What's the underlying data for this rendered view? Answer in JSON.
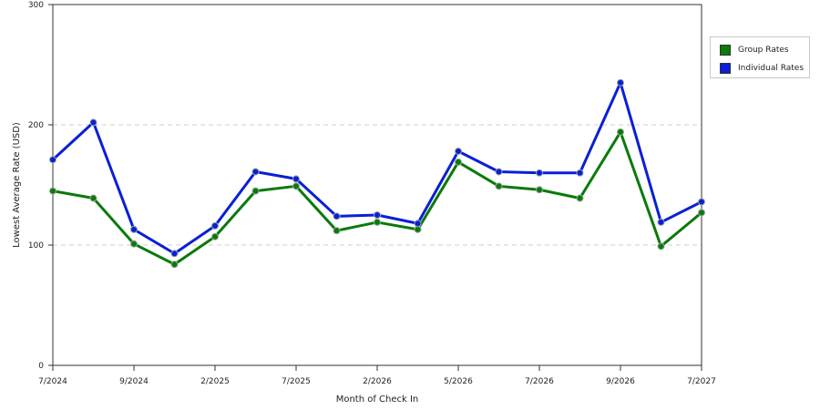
{
  "chart_data": {
    "type": "line",
    "xlabel": "Month of Check In",
    "ylabel": "Lowest Average Rate (USD)",
    "ylim": [
      0,
      300
    ],
    "yticks": [
      0,
      100,
      200,
      300
    ],
    "x_tick_labels": [
      "7/2024",
      "9/2024",
      "2/2025",
      "7/2025",
      "2/2026",
      "5/2026",
      "7/2026",
      "9/2026",
      "7/2027"
    ],
    "x_tick_positions": [
      0,
      2,
      4,
      6,
      8,
      10,
      12,
      14,
      16
    ],
    "x_count": 17,
    "grid": "horizontal dashed",
    "legend_position": "right",
    "series": [
      {
        "name": "Group Rates",
        "color": "#0a7a0a",
        "values": [
          145,
          139,
          101,
          84,
          107,
          145,
          149,
          112,
          119,
          113,
          169,
          149,
          146,
          139,
          194,
          99,
          127
        ]
      },
      {
        "name": "Individual Rates",
        "color": "#0a1fd6",
        "values": [
          171,
          202,
          113,
          93,
          116,
          161,
          155,
          124,
          125,
          118,
          178,
          161,
          160,
          160,
          235,
          119,
          136
        ]
      }
    ]
  }
}
